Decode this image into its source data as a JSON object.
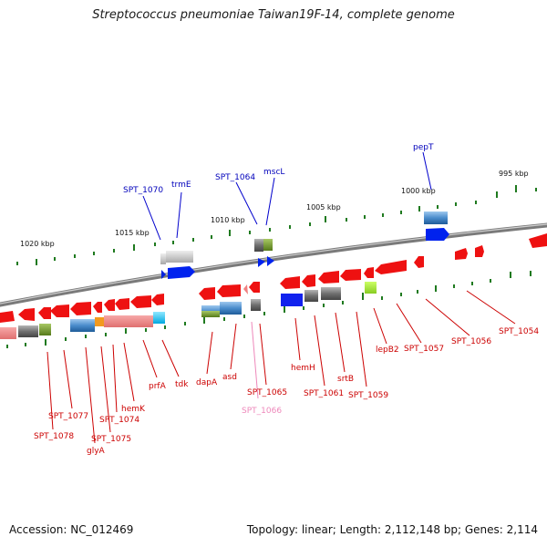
{
  "title": "Streptococcus pneumoniae Taiwan19F-14, complete genome",
  "footer": {
    "accession": "Accession: NC_012469",
    "summary": "Topology: linear; Length: 2,112,148 bp; Genes: 2,114"
  },
  "colors": {
    "forward_gene": "#ee1111",
    "reverse_gene": "#ee1111",
    "backbone": "#888888",
    "tick": "#227722",
    "label_red": "#cc0000",
    "label_blue": "#0000bb",
    "label_pink": "#ee88bb"
  },
  "ruler": [
    {
      "label": "1020 kbp"
    },
    {
      "label": "1015 kbp"
    },
    {
      "label": "1010 kbp"
    },
    {
      "label": "1005 kbp"
    },
    {
      "label": "1000 kbp"
    },
    {
      "label": "995 kbp"
    }
  ],
  "gene_labels": [
    {
      "text": "pepT",
      "color": "blue"
    },
    {
      "text": "SPT_1070",
      "color": "blue"
    },
    {
      "text": "trmE",
      "color": "blue"
    },
    {
      "text": "SPT_1064",
      "color": "blue"
    },
    {
      "text": "mscL",
      "color": "blue"
    },
    {
      "text": "SPT_1054",
      "color": "red"
    },
    {
      "text": "SPT_1056",
      "color": "red"
    },
    {
      "text": "SPT_1057",
      "color": "red"
    },
    {
      "text": "lepB2",
      "color": "red"
    },
    {
      "text": "SPT_1059",
      "color": "red"
    },
    {
      "text": "srtB",
      "color": "red"
    },
    {
      "text": "SPT_1061",
      "color": "red"
    },
    {
      "text": "hemH",
      "color": "red"
    },
    {
      "text": "SPT_1065",
      "color": "red"
    },
    {
      "text": "SPT_1066",
      "color": "pink"
    },
    {
      "text": "asd",
      "color": "red"
    },
    {
      "text": "dapA",
      "color": "red"
    },
    {
      "text": "tdk",
      "color": "red"
    },
    {
      "text": "prfA",
      "color": "red"
    },
    {
      "text": "hemK",
      "color": "red"
    },
    {
      "text": "SPT_1074",
      "color": "red"
    },
    {
      "text": "SPT_1075",
      "color": "red"
    },
    {
      "text": "glyA",
      "color": "red"
    },
    {
      "text": "SPT_1077",
      "color": "red"
    },
    {
      "text": "SPT_1078",
      "color": "red"
    }
  ]
}
